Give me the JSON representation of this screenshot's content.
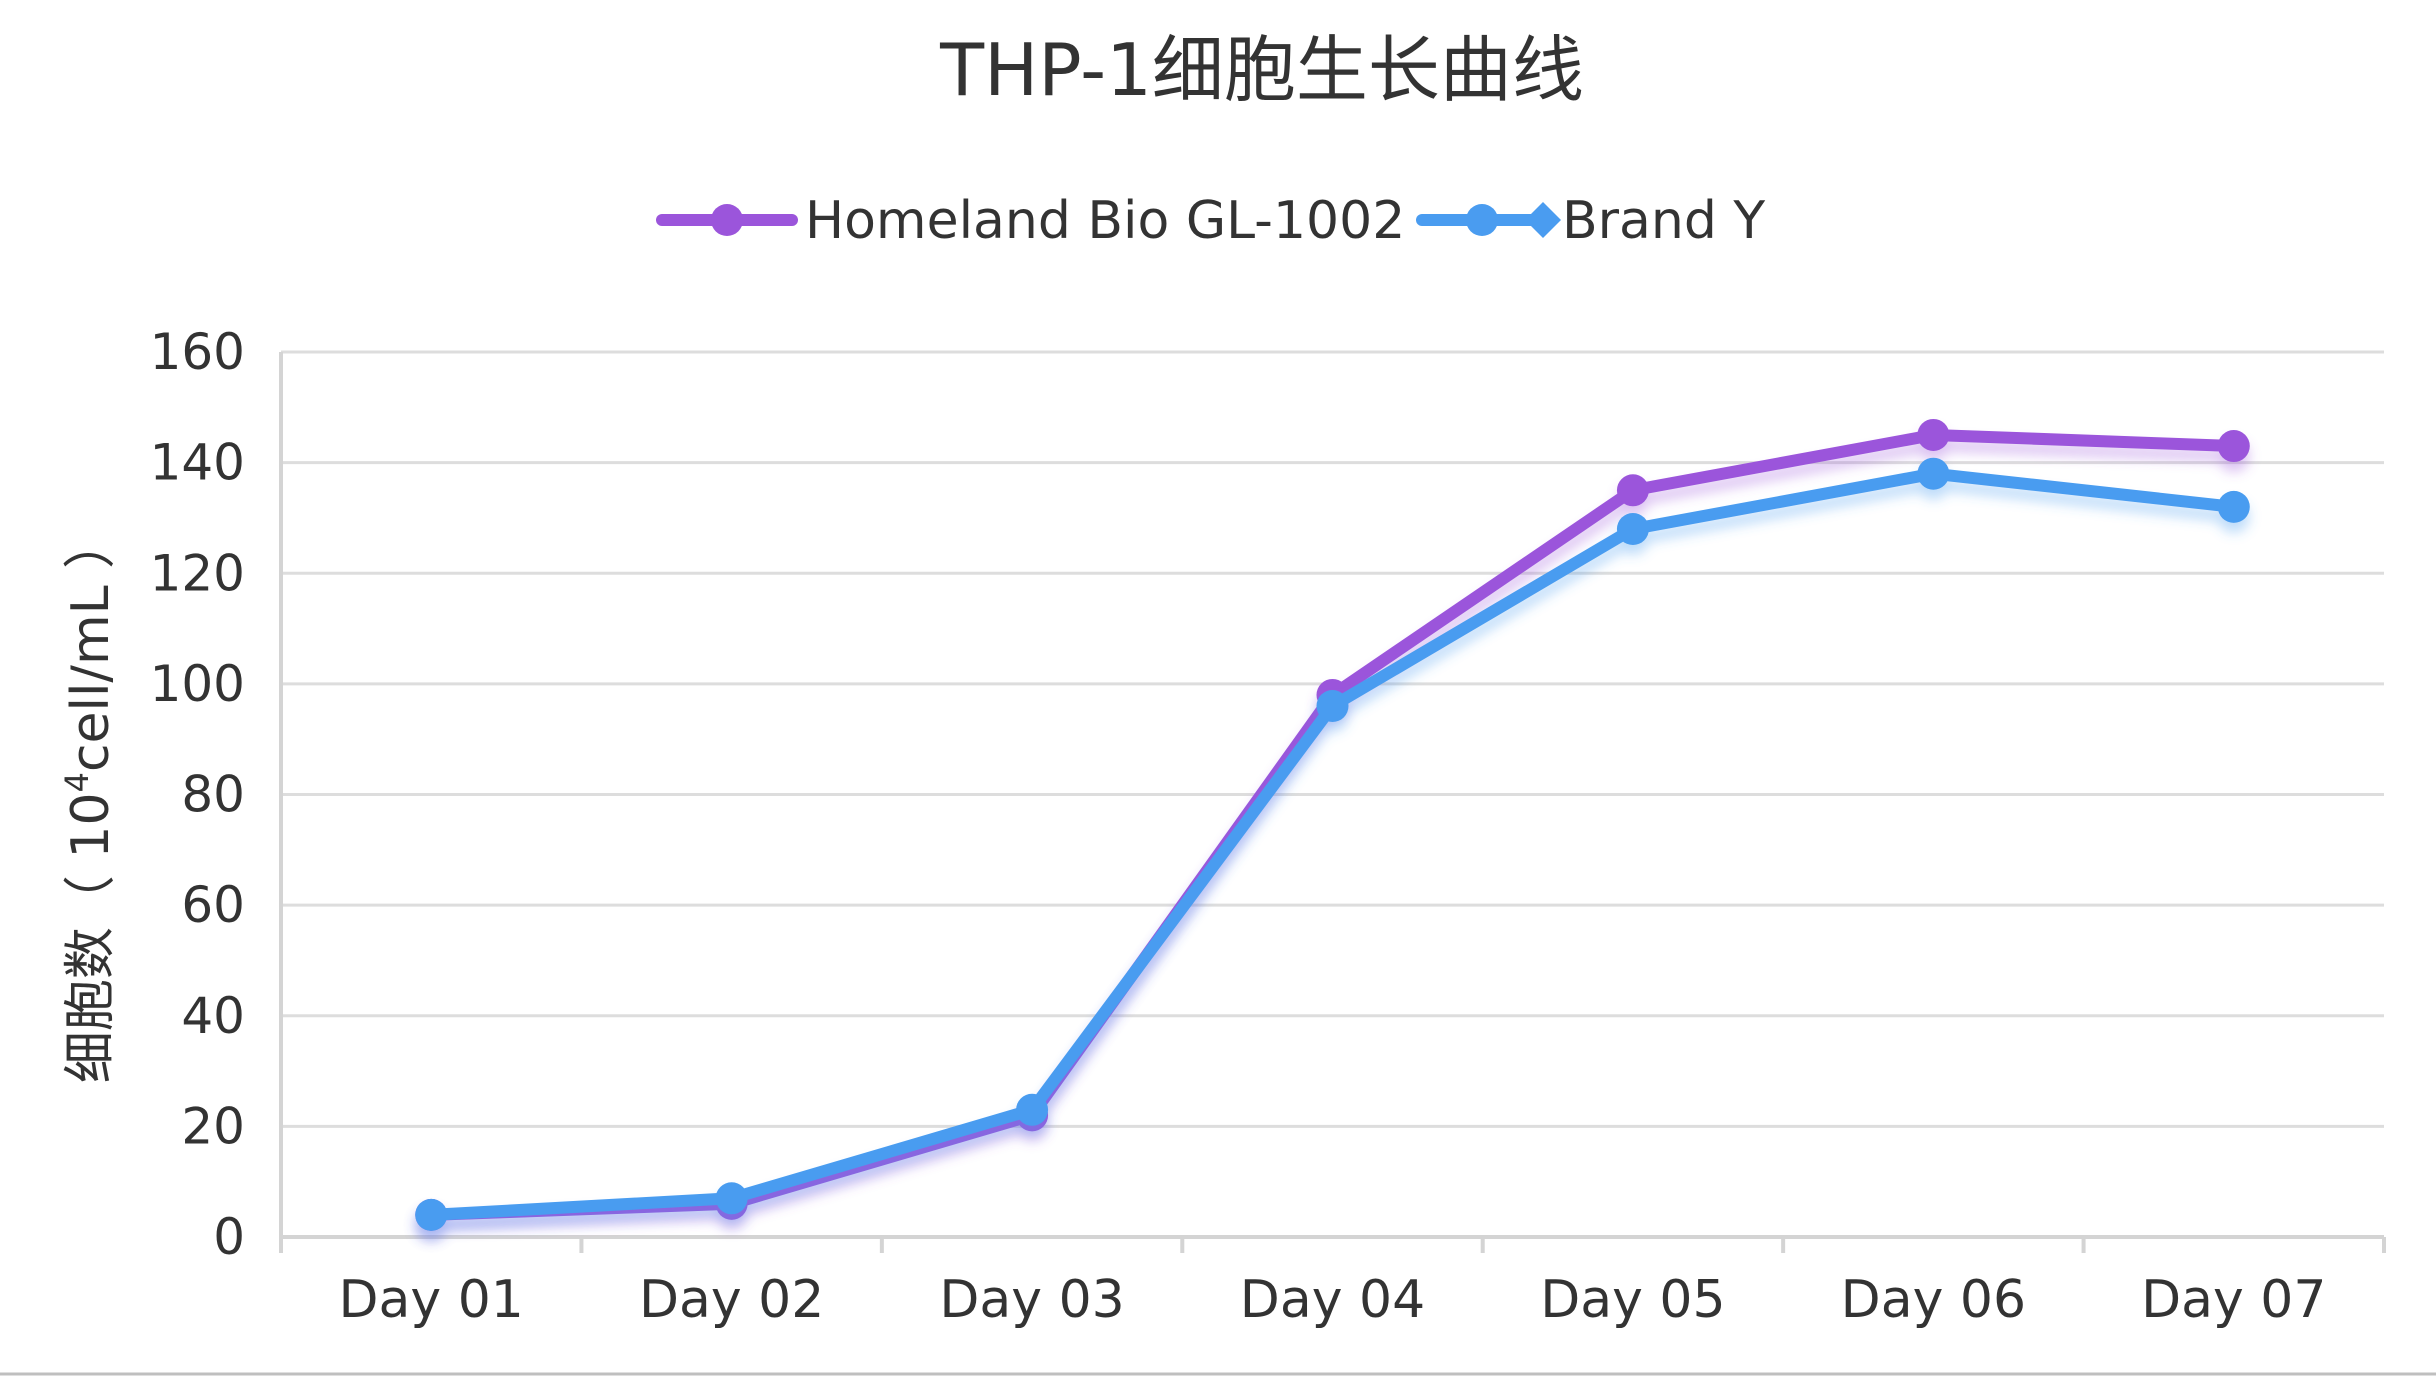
{
  "chart_data": {
    "type": "line",
    "title": "THP-1细胞生长曲线",
    "xlabel": "",
    "ylabel": "细胞数（ 10⁴cell/mL ）",
    "ylabel_parts": {
      "prefix": "细胞数（ 10",
      "superscript": "4",
      "suffix": "cell/mL ）"
    },
    "categories": [
      "Day 01",
      "Day 02",
      "Day 03",
      "Day 04",
      "Day 05",
      "Day 06",
      "Day 07"
    ],
    "ylim": [
      0,
      160
    ],
    "yticks": [
      "0",
      "20",
      "40",
      "60",
      "80",
      "100",
      "120",
      "140",
      "160"
    ],
    "grid": true,
    "legend_position": "top-center",
    "series": [
      {
        "name": "Homeland Bio GL-1002",
        "color": "#9b55db",
        "marker": "circle",
        "values": [
          4,
          6,
          22,
          98,
          135,
          145,
          143
        ]
      },
      {
        "name": "Brand Y",
        "color": "#4a9cf0",
        "marker": "circle-diamond",
        "values": [
          4,
          7,
          23,
          96,
          128,
          138,
          132
        ]
      }
    ]
  }
}
